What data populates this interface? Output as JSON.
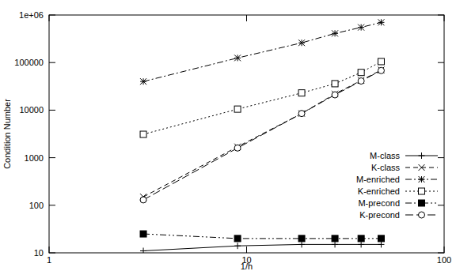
{
  "chart_data": {
    "type": "line",
    "x_label": "1/h",
    "y_label": "Condition Number",
    "log": true,
    "grid": false,
    "legend": "right",
    "xlim": [
      1,
      100
    ],
    "xticks": [
      1,
      10,
      100
    ],
    "ylim": [
      10,
      1000000
    ],
    "yticks": [
      10,
      100,
      1000,
      10000,
      100000,
      {
        "value": 1000000,
        "label": "1e+06"
      }
    ],
    "x": [
      3,
      9,
      19,
      28,
      38,
      48
    ],
    "series": [
      {
        "name": "M-class",
        "color": "#000000",
        "marker": "plus",
        "line_style": "solid",
        "values": [
          11,
          14,
          15,
          15,
          15,
          15
        ]
      },
      {
        "name": "K-class",
        "color": "#000000",
        "marker": "cross",
        "line_style": "dashed",
        "values": [
          150,
          1700,
          8500,
          22000,
          42000,
          70000
        ]
      },
      {
        "name": "M-enriched",
        "color": "#000000",
        "marker": "star",
        "line_style": "dashdot",
        "values": [
          40000,
          125000,
          260000,
          410000,
          550000,
          700000
        ]
      },
      {
        "name": "K-enriched",
        "color": "#000000",
        "marker": "square",
        "line_style": "dotted",
        "values": [
          3100,
          10500,
          23000,
          36000,
          62000,
          105000
        ]
      },
      {
        "name": "M-precond",
        "color": "#000000",
        "marker": "filled-square",
        "line_style": "dashdotdot",
        "values": [
          25,
          20,
          20,
          20,
          20,
          20
        ]
      },
      {
        "name": "K-precond",
        "color": "#000000",
        "marker": "circle",
        "line_style": "longdash",
        "values": [
          130,
          1600,
          8500,
          21000,
          41000,
          68000
        ]
      }
    ]
  }
}
